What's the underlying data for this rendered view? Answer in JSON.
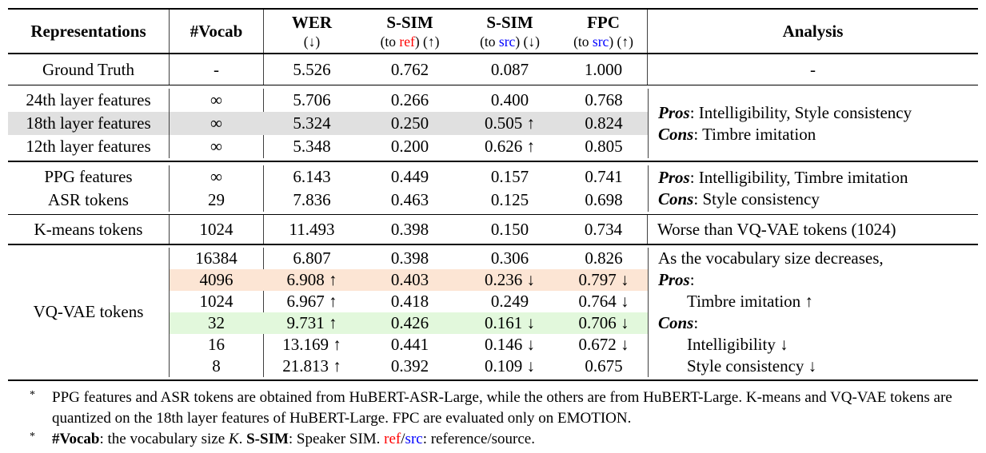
{
  "colors": {
    "ref_red": "#ff0000",
    "src_blue": "#0000ff",
    "highlight_gray": "#e0e0e0",
    "highlight_orange": "#fce5d4",
    "highlight_green": "#e2f8dc"
  },
  "header": {
    "representations": "Representations",
    "vocab": "#Vocab",
    "wer_title": "WER",
    "wer_sub": "(↓)",
    "ssim_ref_title": "S-SIM",
    "ssim_ref_pre": "(to ",
    "ssim_ref_key": "ref",
    "ssim_ref_post": ") (↑)",
    "ssim_src_title": "S-SIM",
    "ssim_src_pre": "(to ",
    "ssim_src_key": "src",
    "ssim_src_post": ") (↓)",
    "fpc_title": "FPC",
    "fpc_pre": "(to ",
    "fpc_key": "src",
    "fpc_post": ") (↑)",
    "analysis": "Analysis"
  },
  "ground_truth": {
    "name": "Ground Truth",
    "vocab": "-",
    "wer": "5.526",
    "ssim_ref": "0.762",
    "ssim_src": "0.087",
    "fpc": "1.000",
    "analysis": "-"
  },
  "layers": {
    "rows": [
      {
        "name": "24th layer features",
        "vocab": "∞",
        "wer": "5.706",
        "ssim_ref": "0.266",
        "ssim_src": "0.400",
        "fpc": "0.768"
      },
      {
        "name": "18th layer features",
        "vocab": "∞",
        "wer": "5.324",
        "ssim_ref": "0.250",
        "ssim_src": "0.505 ↑",
        "fpc": "0.824"
      },
      {
        "name": "12th layer features",
        "vocab": "∞",
        "wer": "5.348",
        "ssim_ref": "0.200",
        "ssim_src": "0.626 ↑",
        "fpc": "0.805"
      }
    ],
    "analysis_pros_label": "Pros",
    "analysis_pros_text": ": Intelligibility, Style consistency",
    "analysis_cons_label": "Cons",
    "analysis_cons_text": ": Timbre imitation"
  },
  "ppg": {
    "rows": [
      {
        "name": "PPG features",
        "vocab": "∞",
        "wer": "6.143",
        "ssim_ref": "0.449",
        "ssim_src": "0.157",
        "fpc": "0.741"
      },
      {
        "name": "ASR tokens",
        "vocab": "29",
        "wer": "7.836",
        "ssim_ref": "0.463",
        "ssim_src": "0.125",
        "fpc": "0.698"
      }
    ],
    "analysis_pros_label": "Pros",
    "analysis_pros_text": ": Intelligibility, Timbre imitation",
    "analysis_cons_label": "Cons",
    "analysis_cons_text": ": Style consistency"
  },
  "kmeans": {
    "name": "K-means tokens",
    "vocab": "1024",
    "wer": "11.493",
    "ssim_ref": "0.398",
    "ssim_src": "0.150",
    "fpc": "0.734",
    "analysis": "Worse than VQ-VAE tokens (1024)"
  },
  "vqvae": {
    "name": "VQ-VAE tokens",
    "rows": [
      {
        "vocab": "16384",
        "wer": "6.807",
        "ssim_ref": "0.398",
        "ssim_src": "0.306",
        "fpc": "0.826",
        "analysis_label": "",
        "analysis_text": "As the vocabulary size decreases,"
      },
      {
        "vocab": "4096",
        "wer": "6.908 ↑",
        "ssim_ref": "0.403",
        "ssim_src": "0.236 ↓",
        "fpc": "0.797 ↓",
        "analysis_label": "Pros",
        "analysis_text": ":"
      },
      {
        "vocab": "1024",
        "wer": "6.967 ↑",
        "ssim_ref": "0.418",
        "ssim_src": "0.249",
        "fpc": "0.764 ↓",
        "analysis_label": "",
        "analysis_text": "Timbre imitation ↑"
      },
      {
        "vocab": "32",
        "wer": "9.731 ↑",
        "ssim_ref": "0.426",
        "ssim_src": "0.161 ↓",
        "fpc": "0.706 ↓",
        "analysis_label": "Cons",
        "analysis_text": ":"
      },
      {
        "vocab": "16",
        "wer": "13.169 ↑",
        "ssim_ref": "0.441",
        "ssim_src": "0.146 ↓",
        "fpc": "0.672 ↓",
        "analysis_label": "",
        "analysis_text": "Intelligibility ↓"
      },
      {
        "vocab": "8",
        "wer": "21.813 ↑",
        "ssim_ref": "0.392",
        "ssim_src": "0.109 ↓",
        "fpc": "0.675",
        "analysis_label": "",
        "analysis_text": "Style consistency ↓"
      }
    ]
  },
  "footnotes": {
    "fn1_marker": "*",
    "fn1_text": "PPG features and ASR tokens are obtained from HuBERT-ASR-Large, while the others are from HuBERT-Large. K-means and VQ-VAE tokens are quantized on the 18th layer features of HuBERT-Large. FPC are evaluated only on EMOTION.",
    "fn2_marker": "*",
    "fn2_vocab_bold": "#Vocab",
    "fn2_t1": ": the vocabulary size ",
    "fn2_k_italic": "K",
    "fn2_t2": ". ",
    "fn2_ssim_bold": "S-SIM",
    "fn2_t3": ": Speaker SIM. ",
    "fn2_ref": "ref",
    "fn2_slash": "/",
    "fn2_src": "src",
    "fn2_t4": ": reference/source."
  }
}
